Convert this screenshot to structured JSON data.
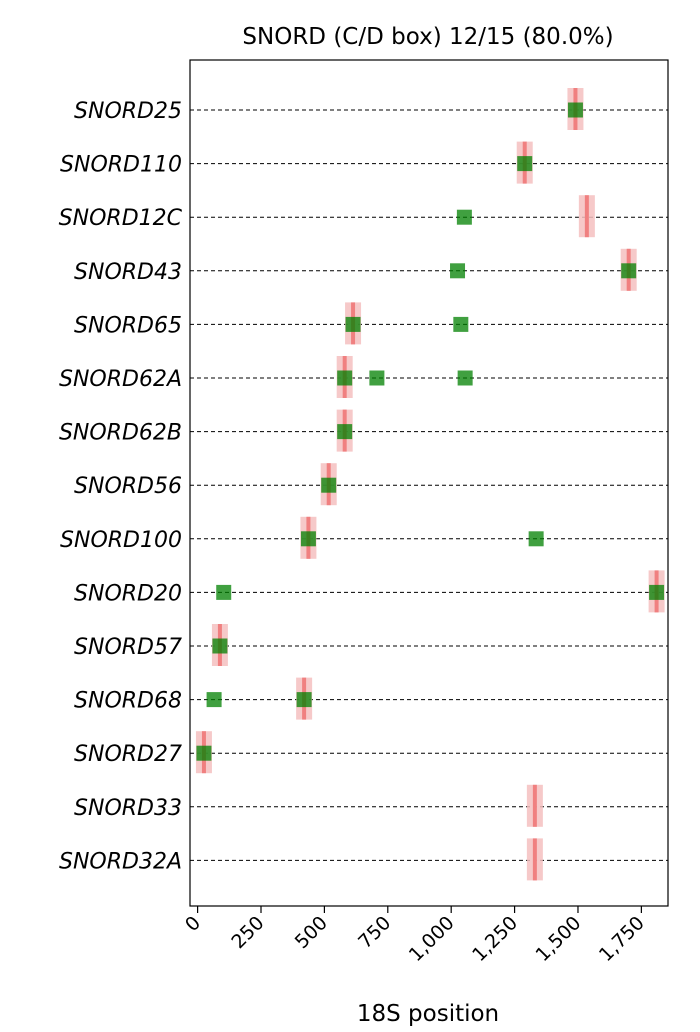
{
  "chart_data": {
    "type": "scatter",
    "title": "SNORD (C/D box) 12/15 (80.0%)",
    "xlabel": "18S position",
    "ylabel": "",
    "xlim": [
      -30,
      1855
    ],
    "xticks": [
      0,
      250,
      500,
      750,
      1000,
      1250,
      1500,
      1750
    ],
    "xtick_labels": [
      "0",
      "250",
      "500",
      "750",
      "1,000",
      "1,250",
      "1,500",
      "1,750"
    ],
    "grid": false,
    "categories": [
      "SNORD25",
      "SNORD110",
      "SNORD12C",
      "SNORD43",
      "SNORD65",
      "SNORD62A",
      "SNORD62B",
      "SNORD56",
      "SNORD100",
      "SNORD20",
      "SNORD57",
      "SNORD68",
      "SNORD27",
      "SNORD33",
      "SNORD32A"
    ],
    "series": [
      {
        "marker": "square",
        "color": "#008000",
        "points": [
          {
            "y": "SNORD25",
            "x": 1490
          },
          {
            "y": "SNORD110",
            "x": 1290
          },
          {
            "y": "SNORD12C",
            "x": 1052
          },
          {
            "y": "SNORD43",
            "x": 1025
          },
          {
            "y": "SNORD43",
            "x": 1700
          },
          {
            "y": "SNORD65",
            "x": 613
          },
          {
            "y": "SNORD65",
            "x": 1038
          },
          {
            "y": "SNORD62A",
            "x": 580
          },
          {
            "y": "SNORD62A",
            "x": 707
          },
          {
            "y": "SNORD62A",
            "x": 1055
          },
          {
            "y": "SNORD62B",
            "x": 580
          },
          {
            "y": "SNORD56",
            "x": 517
          },
          {
            "y": "SNORD100",
            "x": 437
          },
          {
            "y": "SNORD100",
            "x": 1335
          },
          {
            "y": "SNORD20",
            "x": 103
          },
          {
            "y": "SNORD20",
            "x": 1810
          },
          {
            "y": "SNORD57",
            "x": 88
          },
          {
            "y": "SNORD68",
            "x": 65
          },
          {
            "y": "SNORD68",
            "x": 420
          },
          {
            "y": "SNORD27",
            "x": 25
          }
        ]
      },
      {
        "marker": "vertical-band",
        "color": "#f08080",
        "band_color": "#f4c0c0",
        "points": [
          {
            "y": "SNORD25",
            "x": 1490
          },
          {
            "y": "SNORD110",
            "x": 1290
          },
          {
            "y": "SNORD12C",
            "x": 1535
          },
          {
            "y": "SNORD43",
            "x": 1700
          },
          {
            "y": "SNORD65",
            "x": 613
          },
          {
            "y": "SNORD62A",
            "x": 580
          },
          {
            "y": "SNORD62B",
            "x": 580
          },
          {
            "y": "SNORD56",
            "x": 517
          },
          {
            "y": "SNORD100",
            "x": 437
          },
          {
            "y": "SNORD20",
            "x": 1810
          },
          {
            "y": "SNORD57",
            "x": 88
          },
          {
            "y": "SNORD68",
            "x": 420
          },
          {
            "y": "SNORD27",
            "x": 25
          },
          {
            "y": "SNORD33",
            "x": 1330
          },
          {
            "y": "SNORD32A",
            "x": 1330
          }
        ]
      }
    ]
  }
}
